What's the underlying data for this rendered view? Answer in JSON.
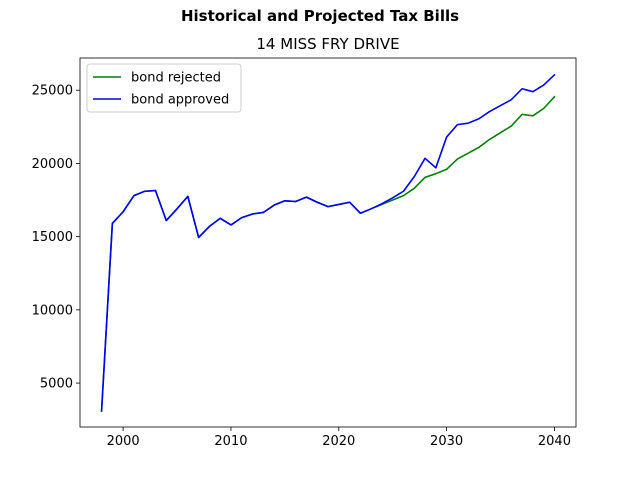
{
  "chart_data": {
    "type": "line",
    "title": "Historical and Projected Tax Bills",
    "subtitle": "14 MISS FRY DRIVE",
    "xlabel": "",
    "ylabel": "",
    "xlim": [
      1996,
      2042
    ],
    "ylim": [
      2000,
      27200
    ],
    "xticks": [
      2000,
      2010,
      2020,
      2030,
      2040
    ],
    "yticks": [
      5000,
      10000,
      15000,
      20000,
      25000
    ],
    "legend_position": "top-left",
    "grid": false,
    "series": [
      {
        "name": "bond rejected",
        "color": "#008000",
        "x": [
          1998,
          1999,
          2000,
          2001,
          2002,
          2003,
          2004,
          2005,
          2006,
          2007,
          2008,
          2009,
          2010,
          2011,
          2012,
          2013,
          2014,
          2015,
          2016,
          2017,
          2018,
          2019,
          2020,
          2021,
          2022,
          2023,
          2024,
          2025,
          2026,
          2027,
          2028,
          2029,
          2030,
          2031,
          2032,
          2033,
          2034,
          2035,
          2036,
          2037,
          2038,
          2039,
          2040
        ],
        "values": [
          3100,
          15900,
          16700,
          17800,
          18100,
          18150,
          16100,
          16900,
          17750,
          14950,
          15700,
          16250,
          15800,
          16300,
          16550,
          16650,
          17150,
          17450,
          17400,
          17700,
          17350,
          17050,
          17200,
          17350,
          16600,
          16900,
          17200,
          17500,
          17800,
          18300,
          19050,
          19300,
          19600,
          20300,
          20700,
          21100,
          21650,
          22100,
          22550,
          23350,
          23250,
          23750,
          24550
        ]
      },
      {
        "name": "bond approved",
        "color": "#0000ff",
        "x": [
          1998,
          1999,
          2000,
          2001,
          2002,
          2003,
          2004,
          2005,
          2006,
          2007,
          2008,
          2009,
          2010,
          2011,
          2012,
          2013,
          2014,
          2015,
          2016,
          2017,
          2018,
          2019,
          2020,
          2021,
          2022,
          2023,
          2024,
          2025,
          2026,
          2027,
          2028,
          2029,
          2030,
          2031,
          2032,
          2033,
          2034,
          2035,
          2036,
          2037,
          2038,
          2039,
          2040
        ],
        "values": [
          3100,
          15900,
          16700,
          17800,
          18100,
          18150,
          16100,
          16900,
          17750,
          14950,
          15700,
          16250,
          15800,
          16300,
          16550,
          16650,
          17150,
          17450,
          17400,
          17700,
          17350,
          17050,
          17200,
          17350,
          16600,
          16900,
          17250,
          17650,
          18100,
          19100,
          20350,
          19700,
          21800,
          22650,
          22750,
          23050,
          23550,
          23950,
          24350,
          25100,
          24900,
          25350,
          26050
        ]
      }
    ]
  }
}
